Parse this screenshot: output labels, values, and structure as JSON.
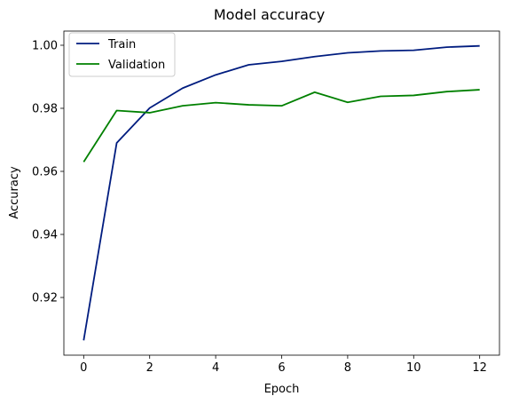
{
  "chart_data": {
    "type": "line",
    "title": "Model accuracy",
    "xlabel": "Epoch",
    "ylabel": "Accuracy",
    "x": [
      0,
      1,
      2,
      3,
      4,
      5,
      6,
      7,
      8,
      9,
      10,
      11,
      12
    ],
    "series": [
      {
        "name": "Train",
        "color": "#001c7f",
        "values": [
          0.9064,
          0.969,
          0.9801,
          0.9864,
          0.9906,
          0.9938,
          0.9949,
          0.9964,
          0.9976,
          0.9982,
          0.9984,
          0.9994,
          0.9998
        ]
      },
      {
        "name": "Validation",
        "color": "#008000",
        "values": [
          0.963,
          0.9793,
          0.9786,
          0.9808,
          0.9818,
          0.9811,
          0.9808,
          0.9851,
          0.9819,
          0.9838,
          0.9841,
          0.9853,
          0.9859
        ]
      }
    ],
    "xticks": [
      0,
      2,
      4,
      6,
      8,
      10,
      12
    ],
    "yticks": [
      0.92,
      0.94,
      0.96,
      0.98,
      1.0
    ],
    "xtick_labels": [
      "0",
      "2",
      "4",
      "6",
      "8",
      "10",
      "12"
    ],
    "ytick_labels": [
      "0.92",
      "0.94",
      "0.96",
      "0.98",
      "1.00"
    ],
    "xlim": [
      -0.6,
      12.6
    ],
    "ylim": [
      0.9017,
      1.0045
    ],
    "grid": false,
    "legend_position": "upper-left"
  }
}
